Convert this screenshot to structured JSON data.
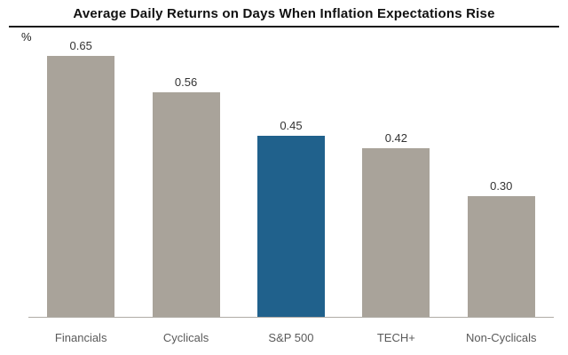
{
  "chart_data": {
    "type": "bar",
    "title": "Average Daily Returns on Days When Inflation Expectations Rise",
    "ylabel": "%",
    "xlabel": "",
    "categories": [
      "Financials",
      "Cyclicals",
      "S&P 500",
      "TECH+",
      "Non-Cyclicals"
    ],
    "values": [
      0.65,
      0.56,
      0.45,
      0.42,
      0.3
    ],
    "value_labels": [
      "0.65",
      "0.56",
      "0.45",
      "0.42",
      "0.30"
    ],
    "ylim": [
      0,
      0.7
    ],
    "grid": false,
    "legend": "none",
    "bar_color": "#a9a39a",
    "highlight_color": "#20618c",
    "highlight_index": 2,
    "highlight_category": "S&P 500"
  }
}
